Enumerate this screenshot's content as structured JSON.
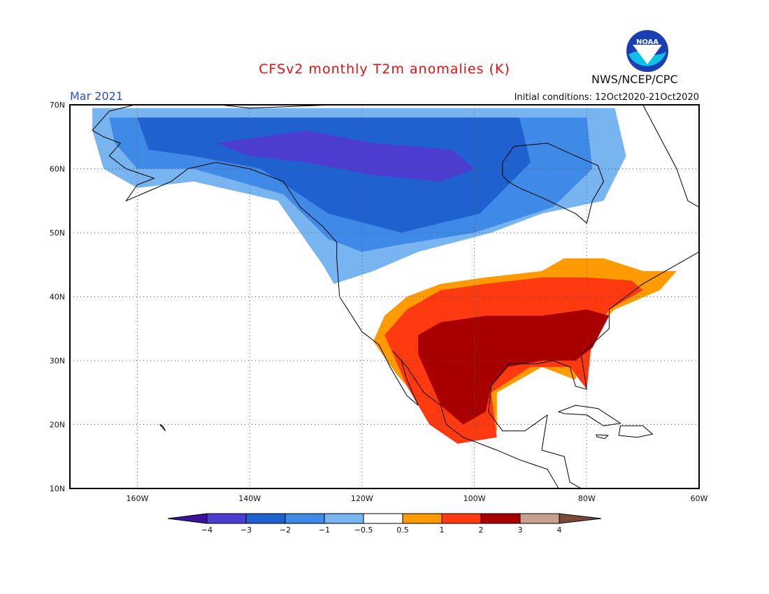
{
  "header": {
    "title": "CFSv2 monthly T2m anomalies (K)",
    "period": "Mar 2021",
    "initial_conditions": "Initial conditions: 12Oct2020-21Oct2020",
    "agency": "NWS/NCEP/CPC",
    "logo_text": "NOAA"
  },
  "map": {
    "lat_range": [
      10,
      70
    ],
    "lon_range": [
      -172,
      -60
    ],
    "lat_ticks": [
      {
        "value": 10,
        "label": "10N"
      },
      {
        "value": 20,
        "label": "20N"
      },
      {
        "value": 30,
        "label": "30N"
      },
      {
        "value": 40,
        "label": "40N"
      },
      {
        "value": 50,
        "label": "50N"
      },
      {
        "value": 60,
        "label": "60N"
      },
      {
        "value": 70,
        "label": "70N"
      }
    ],
    "lon_ticks": [
      {
        "value": -160,
        "label": "160W"
      },
      {
        "value": -140,
        "label": "140W"
      },
      {
        "value": -120,
        "label": "120W"
      },
      {
        "value": -100,
        "label": "100W"
      },
      {
        "value": -80,
        "label": "80W"
      },
      {
        "value": -60,
        "label": "60W"
      }
    ],
    "gridlines": true,
    "anomaly_regions": [
      {
        "class": "-1 to -0.5",
        "color": "#78b4f0",
        "lonlat": [
          [
            -168,
            69.5
          ],
          [
            -75,
            69.5
          ],
          [
            -73,
            62
          ],
          [
            -77,
            55
          ],
          [
            -88,
            53
          ],
          [
            -97,
            50
          ],
          [
            -110,
            47
          ],
          [
            -118,
            44
          ],
          [
            -125,
            42
          ],
          [
            -127,
            45
          ],
          [
            -135,
            55
          ],
          [
            -150,
            58
          ],
          [
            -160,
            57
          ],
          [
            -166,
            60
          ],
          [
            -168,
            66
          ]
        ]
      },
      {
        "class": "-2 to -1",
        "color": "#3f8ae6",
        "lonlat": [
          [
            -165,
            68
          ],
          [
            -80,
            68
          ],
          [
            -79,
            60
          ],
          [
            -86,
            54
          ],
          [
            -100,
            50
          ],
          [
            -114,
            48
          ],
          [
            -120,
            47
          ],
          [
            -126,
            49
          ],
          [
            -134,
            56
          ],
          [
            -150,
            60
          ],
          [
            -160,
            60
          ],
          [
            -164,
            64
          ]
        ]
      },
      {
        "class": "-3 to -2",
        "color": "#1f62cf",
        "lonlat": [
          [
            -160,
            68
          ],
          [
            -92,
            68
          ],
          [
            -90,
            61
          ],
          [
            -99,
            53
          ],
          [
            -113,
            50
          ],
          [
            -126,
            53
          ],
          [
            -138,
            60
          ],
          [
            -150,
            62
          ],
          [
            -158,
            63
          ]
        ]
      },
      {
        "class": "-4 to -3",
        "color": "#4d3cd0",
        "lonlat": [
          [
            -146,
            64
          ],
          [
            -130,
            66
          ],
          [
            -118,
            64
          ],
          [
            -104,
            63
          ],
          [
            -100,
            60
          ],
          [
            -106,
            58
          ],
          [
            -118,
            59
          ],
          [
            -130,
            61
          ],
          [
            -140,
            62
          ]
        ]
      },
      {
        "class": "0.5 to 1",
        "color": "#ff9a00",
        "lonlat": [
          [
            -118,
            33
          ],
          [
            -116,
            37
          ],
          [
            -112,
            40
          ],
          [
            -106,
            42
          ],
          [
            -98,
            43
          ],
          [
            -88,
            44
          ],
          [
            -84,
            46
          ],
          [
            -77,
            46
          ],
          [
            -70,
            44
          ],
          [
            -64,
            44
          ],
          [
            -67,
            41
          ],
          [
            -75,
            38
          ],
          [
            -80,
            34
          ],
          [
            -82,
            27
          ],
          [
            -88,
            29
          ],
          [
            -96,
            25
          ],
          [
            -96,
            19
          ],
          [
            -104,
            18
          ],
          [
            -110,
            24
          ],
          [
            -114,
            28
          ]
        ]
      },
      {
        "class": "1 to 2",
        "color": "#ff3a10",
        "lonlat": [
          [
            -116,
            34
          ],
          [
            -112,
            38
          ],
          [
            -106,
            41
          ],
          [
            -98,
            42
          ],
          [
            -88,
            43
          ],
          [
            -80,
            43
          ],
          [
            -72,
            42.5
          ],
          [
            -70,
            41
          ],
          [
            -76,
            38
          ],
          [
            -79,
            34
          ],
          [
            -80,
            25.5
          ],
          [
            -83,
            29
          ],
          [
            -90,
            29
          ],
          [
            -97,
            25
          ],
          [
            -96,
            18
          ],
          [
            -103,
            17
          ],
          [
            -108,
            20
          ],
          [
            -112,
            26
          ],
          [
            -114,
            30
          ]
        ]
      },
      {
        "class": "2 to 3",
        "color": "#a80000",
        "lonlat": [
          [
            -110,
            34
          ],
          [
            -106,
            36
          ],
          [
            -98,
            37
          ],
          [
            -88,
            37
          ],
          [
            -80,
            38
          ],
          [
            -76,
            37
          ],
          [
            -79,
            32
          ],
          [
            -82,
            30
          ],
          [
            -88,
            30
          ],
          [
            -94,
            29
          ],
          [
            -97,
            26
          ],
          [
            -98,
            22
          ],
          [
            -102,
            20
          ],
          [
            -106,
            23
          ],
          [
            -108,
            27
          ],
          [
            -110,
            31
          ]
        ]
      }
    ],
    "landmasses": [
      {
        "name": "north-america",
        "lonlat": [
          [
            -168,
            66
          ],
          [
            -165,
            69
          ],
          [
            -156,
            71
          ],
          [
            -140,
            69.5
          ],
          [
            -125,
            70
          ],
          [
            -100,
            70
          ],
          [
            -80,
            70
          ],
          [
            -70,
            70
          ],
          [
            -64,
            60
          ],
          [
            -62,
            55
          ],
          [
            -56,
            52
          ],
          [
            -60,
            47
          ],
          [
            -66,
            44
          ],
          [
            -70,
            42
          ],
          [
            -76,
            38
          ],
          [
            -76,
            35
          ],
          [
            -81,
            31
          ],
          [
            -80,
            25.5
          ],
          [
            -82,
            26
          ],
          [
            -83,
            29
          ],
          [
            -86,
            30
          ],
          [
            -89,
            29.5
          ],
          [
            -94,
            29.5
          ],
          [
            -97,
            26
          ],
          [
            -97.5,
            22
          ],
          [
            -95,
            19
          ],
          [
            -91,
            19
          ],
          [
            -87,
            21.5
          ],
          [
            -88,
            16
          ],
          [
            -84,
            15
          ],
          [
            -83,
            11
          ],
          [
            -79,
            9
          ],
          [
            -78,
            8
          ],
          [
            -81,
            7.5
          ],
          [
            -85,
            10
          ],
          [
            -87,
            13
          ],
          [
            -92,
            14.5
          ],
          [
            -96,
            16
          ],
          [
            -102,
            18
          ],
          [
            -105,
            20
          ],
          [
            -106,
            23
          ],
          [
            -109,
            25
          ],
          [
            -112,
            29
          ],
          [
            -114.5,
            31.5
          ],
          [
            -113,
            30
          ],
          [
            -112,
            27
          ],
          [
            -110,
            23
          ],
          [
            -112,
            24.5
          ],
          [
            -115,
            29
          ],
          [
            -117,
            32.5
          ],
          [
            -120,
            34.5
          ],
          [
            -124,
            40
          ],
          [
            -124.5,
            46
          ],
          [
            -124.5,
            48.5
          ],
          [
            -127,
            51
          ],
          [
            -131,
            54
          ],
          [
            -134,
            58
          ],
          [
            -137,
            59
          ],
          [
            -140,
            60
          ],
          [
            -146,
            61
          ],
          [
            -151,
            60
          ],
          [
            -154,
            58
          ],
          [
            -158,
            56.5
          ],
          [
            -162,
            55
          ],
          [
            -160,
            57.5
          ],
          [
            -157,
            58.5
          ],
          [
            -162,
            60
          ],
          [
            -165,
            62
          ],
          [
            -163,
            64
          ],
          [
            -166,
            65
          ]
        ]
      },
      {
        "name": "hudson-bay",
        "water": true,
        "lonlat": [
          [
            -95,
            59
          ],
          [
            -94,
            58
          ],
          [
            -92,
            57
          ],
          [
            -88,
            55.5
          ],
          [
            -82,
            53
          ],
          [
            -80,
            51.5
          ],
          [
            -79,
            55
          ],
          [
            -77,
            58
          ],
          [
            -78,
            60.5
          ],
          [
            -82,
            62
          ],
          [
            -87,
            64
          ],
          [
            -93,
            63.5
          ],
          [
            -95,
            61
          ]
        ]
      },
      {
        "name": "cuba",
        "lonlat": [
          [
            -85,
            22
          ],
          [
            -82,
            23
          ],
          [
            -78,
            22.5
          ],
          [
            -74,
            20.2
          ],
          [
            -77,
            19.8
          ],
          [
            -80,
            21.5
          ],
          [
            -84,
            21.7
          ]
        ]
      },
      {
        "name": "hispaniola",
        "lonlat": [
          [
            -74,
            19.8
          ],
          [
            -70,
            19.8
          ],
          [
            -68.3,
            18.5
          ],
          [
            -71,
            18
          ],
          [
            -74.3,
            18.3
          ]
        ]
      },
      {
        "name": "jamaica",
        "lonlat": [
          [
            -78.3,
            18.4
          ],
          [
            -76.2,
            18.3
          ],
          [
            -76.8,
            17.8
          ],
          [
            -78.2,
            18.1
          ]
        ]
      },
      {
        "name": "greenland",
        "lonlat": [
          [
            -60,
            70
          ],
          [
            -52,
            70
          ],
          [
            -48,
            63
          ],
          [
            -43,
            60
          ],
          [
            -42,
            61
          ],
          [
            -44,
            70
          ]
        ]
      },
      {
        "name": "hawaii",
        "lonlat": [
          [
            -156,
            20
          ],
          [
            -155,
            19
          ],
          [
            -155.5,
            19.8
          ]
        ]
      }
    ]
  },
  "legend": {
    "colors": [
      "#3c10a0",
      "#4d3cd0",
      "#1f62cf",
      "#3f8ae6",
      "#78b4f0",
      "#ffffff",
      "#ff9a00",
      "#ff3a10",
      "#a80000",
      "#c8a090",
      "#7a4a38"
    ],
    "labels": [
      "−4",
      "−3",
      "−2",
      "−1",
      "−0.5",
      "0.5",
      "1",
      "2",
      "3",
      "4"
    ]
  }
}
